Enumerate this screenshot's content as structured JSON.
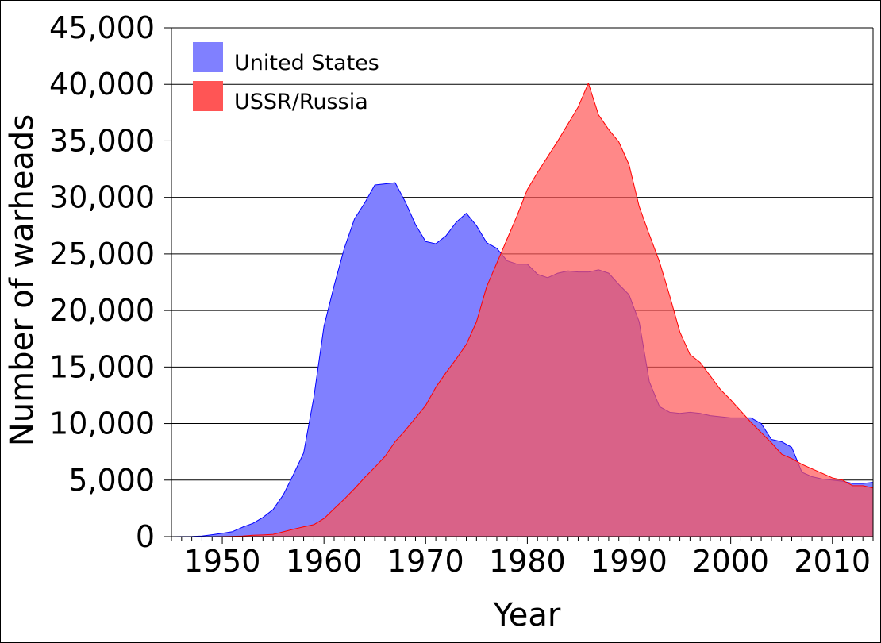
{
  "chart_data": {
    "type": "area",
    "title": "",
    "xlabel": "Year",
    "ylabel": "Number of warheads",
    "xlim": [
      1945,
      2014
    ],
    "ylim": [
      0,
      45000
    ],
    "x_ticks": [
      1950,
      1960,
      1970,
      1980,
      1990,
      2000,
      2010
    ],
    "x_tick_labels": [
      "1950",
      "1960",
      "1970",
      "1980",
      "1990",
      "2000",
      "2010"
    ],
    "y_ticks": [
      0,
      5000,
      10000,
      15000,
      20000,
      25000,
      30000,
      35000,
      40000,
      45000
    ],
    "y_tick_labels": [
      "0",
      "5,000",
      "10,000",
      "15,000",
      "20,000",
      "25,000",
      "30,000",
      "35,000",
      "40,000",
      "45,000"
    ],
    "grid": "horizontal",
    "legend_position": "top-left",
    "series": [
      {
        "name": "United States",
        "color": "#8080ff",
        "stroke": "#0000ff",
        "x": [
          1945,
          1946,
          1947,
          1948,
          1949,
          1950,
          1951,
          1952,
          1953,
          1954,
          1955,
          1956,
          1957,
          1958,
          1959,
          1960,
          1961,
          1962,
          1963,
          1964,
          1965,
          1966,
          1967,
          1968,
          1969,
          1970,
          1971,
          1972,
          1973,
          1974,
          1975,
          1976,
          1977,
          1978,
          1979,
          1980,
          1981,
          1982,
          1983,
          1984,
          1985,
          1986,
          1987,
          1988,
          1989,
          1990,
          1991,
          1992,
          1993,
          1994,
          1995,
          1996,
          1997,
          1998,
          1999,
          2000,
          2001,
          2002,
          2003,
          2004,
          2005,
          2006,
          2007,
          2008,
          2009,
          2010,
          2011,
          2012,
          2013,
          2014
        ],
        "values": [
          2,
          9,
          13,
          50,
          170,
          300,
          440,
          840,
          1170,
          1700,
          2400,
          3700,
          5500,
          7400,
          12300,
          18600,
          22200,
          25500,
          28100,
          29500,
          31100,
          31200,
          31300,
          29600,
          27600,
          26100,
          25900,
          26600,
          27800,
          28600,
          27500,
          26000,
          25500,
          24400,
          24100,
          24100,
          23200,
          22900,
          23300,
          23500,
          23400,
          23400,
          23600,
          23300,
          22300,
          21400,
          19000,
          13700,
          11500,
          11000,
          10900,
          11000,
          10900,
          10700,
          10600,
          10500,
          10500,
          10500,
          10000,
          8600,
          8400,
          7900,
          5700,
          5300,
          5100,
          5000,
          4900,
          4700,
          4700,
          4800
        ]
      },
      {
        "name": "USSR/Russia",
        "color": "#ff5555",
        "stroke": "#ff0000",
        "x": [
          1945,
          1946,
          1947,
          1948,
          1949,
          1950,
          1951,
          1952,
          1953,
          1954,
          1955,
          1956,
          1957,
          1958,
          1959,
          1960,
          1961,
          1962,
          1963,
          1964,
          1965,
          1966,
          1967,
          1968,
          1969,
          1970,
          1971,
          1972,
          1973,
          1974,
          1975,
          1976,
          1977,
          1978,
          1979,
          1980,
          1981,
          1982,
          1983,
          1984,
          1985,
          1986,
          1987,
          1988,
          1989,
          1990,
          1991,
          1992,
          1993,
          1994,
          1995,
          1996,
          1997,
          1998,
          1999,
          2000,
          2001,
          2002,
          2003,
          2004,
          2005,
          2006,
          2007,
          2008,
          2009,
          2010,
          2011,
          2012,
          2013,
          2014
        ],
        "values": [
          0,
          0,
          0,
          0,
          1,
          5,
          25,
          50,
          120,
          150,
          200,
          430,
          660,
          870,
          1060,
          1600,
          2470,
          3320,
          4240,
          5220,
          6130,
          7090,
          8400,
          9400,
          10500,
          11600,
          13200,
          14500,
          15700,
          17000,
          19000,
          22100,
          24200,
          26300,
          28400,
          30700,
          32200,
          33600,
          35000,
          36500,
          38000,
          40100,
          37300,
          36000,
          34900,
          32900,
          29200,
          26700,
          24300,
          21300,
          18100,
          16100,
          15400,
          14200,
          13000,
          12100,
          11100,
          10100,
          9200,
          8300,
          7300,
          6900,
          6400,
          6000,
          5600,
          5200,
          5000,
          4500,
          4500,
          4300
        ]
      }
    ]
  }
}
